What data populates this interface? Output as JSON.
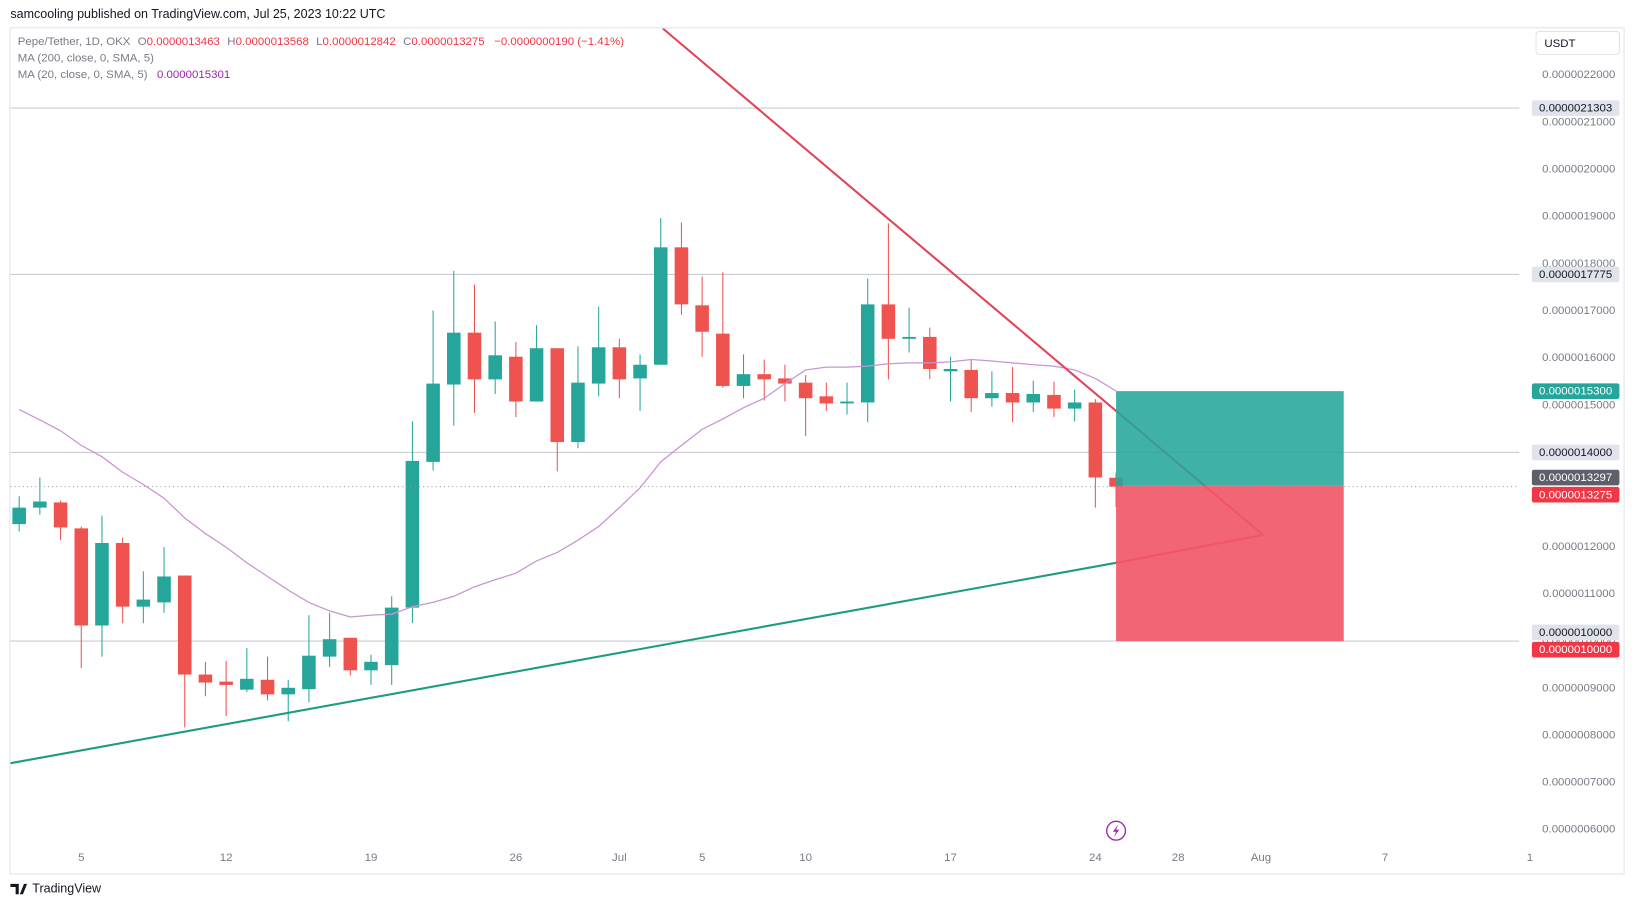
{
  "header": {
    "text": "samcooling published on TradingView.com, Jul 25, 2023 10:22 UTC"
  },
  "footer": {
    "text": "TradingView"
  },
  "chart_data": {
    "type": "candlestick",
    "currency": "USDT",
    "legend": {
      "symbol": "Pepe/Tether, 1D, OKX",
      "labels": [
        "O",
        "H",
        "L",
        "C"
      ],
      "change": "−0.0000000190 (−1.41%)"
    },
    "categories": [
      null,
      null,
      null,
      "5",
      null,
      null,
      null,
      null,
      null,
      null,
      "12",
      null,
      null,
      null,
      null,
      null,
      null,
      "19",
      null,
      null,
      null,
      null,
      null,
      null,
      "26",
      null,
      null,
      null,
      null,
      "Jul",
      null,
      null,
      null,
      "5",
      null,
      null,
      null,
      null,
      "10",
      null,
      null,
      null,
      null,
      null,
      null,
      "17",
      null,
      null,
      null,
      null,
      null,
      null,
      "24",
      null,
      null,
      null,
      "28",
      null,
      null,
      null,
      "Aug",
      null,
      null,
      null,
      null,
      null,
      "7",
      null,
      null,
      null,
      null,
      null,
      null,
      "1"
    ],
    "series": [
      {
        "name": "Pepe/Tether",
        "up_color": "#26a69a",
        "down_color": "#ef5350",
        "open": [
          1.248e-06,
          1.283e-06,
          1.294e-06,
          1.239e-06,
          1.033e-06,
          1.208e-06,
          1.073e-06,
          1.082e-06,
          1.139e-06,
          9.29e-07,
          9.14e-07,
          8.97e-07,
          9.18e-07,
          8.87e-07,
          8.98e-07,
          9.67e-07,
          1.007e-06,
          9.38e-07,
          9.49e-07,
          1.071e-06,
          1.38e-06,
          1.544e-06,
          1.654e-06,
          1.555e-06,
          1.603e-06,
          1.508e-06,
          1.621e-06,
          1.422e-06,
          1.546e-06,
          1.623e-06,
          1.557e-06,
          1.586e-06,
          1.835e-06,
          1.712e-06,
          1.652e-06,
          1.541e-06,
          1.566e-06,
          1.557e-06,
          1.548e-06,
          1.519e-06,
          1.504e-06,
          1.506e-06,
          1.714e-06,
          1.641e-06,
          1.645e-06,
          1.572e-06,
          1.575e-06,
          1.515e-06,
          1.526e-06,
          1.506e-06,
          1.522e-06,
          1.493e-06,
          1.506e-06,
          1.3463e-06,
          null,
          null,
          null,
          null,
          null,
          null,
          null,
          null,
          null,
          null,
          null,
          null,
          null,
          null,
          null,
          null,
          null,
          null,
          null,
          null
        ],
        "high": [
          1.307e-06,
          1.347e-06,
          1.298e-06,
          1.243e-06,
          1.266e-06,
          1.219e-06,
          1.148e-06,
          1.199e-06,
          1.139e-06,
          9.56e-07,
          9.58e-07,
          9.85e-07,
          9.67e-07,
          9.18e-07,
          1.055e-06,
          1.06e-06,
          1.007e-06,
          9.71e-07,
          1.095e-06,
          1.466e-06,
          1.701e-06,
          1.785e-06,
          1.756e-06,
          1.678e-06,
          1.634e-06,
          1.67e-06,
          1.621e-06,
          1.625e-06,
          1.709e-06,
          1.641e-06,
          1.608e-06,
          1.897e-06,
          1.888e-06,
          1.773e-06,
          1.782e-06,
          1.608e-06,
          1.597e-06,
          1.586e-06,
          1.564e-06,
          1.548e-06,
          1.548e-06,
          1.769e-06,
          1.886e-06,
          1.707e-06,
          1.665e-06,
          1.603e-06,
          1.597e-06,
          1.572e-06,
          1.581e-06,
          1.552e-06,
          1.55e-06,
          1.533e-06,
          1.513e-06,
          1.3568e-06,
          null,
          null,
          null,
          null,
          null,
          null,
          null,
          null,
          null,
          null,
          null,
          null,
          null,
          null,
          null,
          null,
          null,
          null,
          null,
          null
        ],
        "low": [
          1.232e-06,
          1.268e-06,
          1.214e-06,
          9.43e-07,
          9.67e-07,
          1.038e-06,
          1.038e-06,
          1.06e-06,
          8.17e-07,
          8.83e-07,
          8.41e-07,
          8.92e-07,
          8.74e-07,
          8.3e-07,
          8.7e-07,
          9.45e-07,
          9.27e-07,
          9.07e-07,
          9.07e-07,
          1.038e-06,
          1.362e-06,
          1.457e-06,
          1.484e-06,
          1.524e-06,
          1.475e-06,
          1.508e-06,
          1.36e-06,
          1.409e-06,
          1.519e-06,
          1.515e-06,
          1.488e-06,
          1.586e-06,
          1.692e-06,
          1.603e-06,
          1.537e-06,
          1.515e-06,
          1.51e-06,
          1.508e-06,
          1.435e-06,
          1.488e-06,
          1.48e-06,
          1.464e-06,
          1.555e-06,
          1.612e-06,
          1.555e-06,
          1.508e-06,
          1.486e-06,
          1.497e-06,
          1.464e-06,
          1.486e-06,
          1.475e-06,
          1.466e-06,
          1.283e-06,
          1.2842e-06,
          null,
          null,
          null,
          null,
          null,
          null,
          null,
          null,
          null,
          null,
          null,
          null,
          null,
          null,
          null,
          null,
          null,
          null,
          null,
          null
        ],
        "close": [
          1.283e-06,
          1.296e-06,
          1.241e-06,
          1.033e-06,
          1.208e-06,
          1.073e-06,
          1.088e-06,
          1.137e-06,
          9.29e-07,
          9.12e-07,
          9.07e-07,
          9.2e-07,
          8.87e-07,
          9.01e-07,
          9.69e-07,
          1.004e-06,
          9.38e-07,
          9.56e-07,
          1.071e-06,
          1.382e-06,
          1.546e-06,
          1.654e-06,
          1.555e-06,
          1.606e-06,
          1.508e-06,
          1.621e-06,
          1.422e-06,
          1.548e-06,
          1.623e-06,
          1.555e-06,
          1.586e-06,
          1.835e-06,
          1.714e-06,
          1.656e-06,
          1.541e-06,
          1.566e-06,
          1.555e-06,
          1.546e-06,
          1.515e-06,
          1.504e-06,
          1.508e-06,
          1.714e-06,
          1.641e-06,
          1.645e-06,
          1.577e-06,
          1.577e-06,
          1.515e-06,
          1.526e-06,
          1.506e-06,
          1.524e-06,
          1.493e-06,
          1.506e-06,
          1.347e-06,
          1.3275e-06,
          null,
          null,
          null,
          null,
          null,
          null,
          null,
          null,
          null,
          null,
          null,
          null,
          null,
          null,
          null,
          null,
          null,
          null,
          null,
          null
        ]
      }
    ],
    "indicators": [
      {
        "name": "MA (200, close, 0, SMA, 5)"
      },
      {
        "name": "MA (20, close, 0, SMA, 5)",
        "color": "#c993d4",
        "values": [
          1.491e-06,
          1.469e-06,
          1.446e-06,
          1.415e-06,
          1.391e-06,
          1.358e-06,
          1.332e-06,
          1.303e-06,
          1.261e-06,
          1.228e-06,
          1.199e-06,
          1.166e-06,
          1.137e-06,
          1.108e-06,
          1.082e-06,
          1.064e-06,
          1.051e-06,
          1.055e-06,
          1.057e-06,
          1.073e-06,
          1.082e-06,
          1.095e-06,
          1.115e-06,
          1.13e-06,
          1.144e-06,
          1.17e-06,
          1.188e-06,
          1.214e-06,
          1.243e-06,
          1.283e-06,
          1.325e-06,
          1.38e-06,
          1.415e-06,
          1.449e-06,
          1.471e-06,
          1.495e-06,
          1.515e-06,
          1.546e-06,
          1.575e-06,
          1.581e-06,
          1.581e-06,
          1.583e-06,
          1.588e-06,
          1.59e-06,
          1.59e-06,
          1.592e-06,
          1.597e-06,
          1.594e-06,
          1.59e-06,
          1.586e-06,
          1.583e-06,
          1.575e-06,
          1.557e-06,
          1.5301e-06,
          null,
          null,
          null,
          null,
          null,
          null,
          null,
          null,
          null,
          null,
          null,
          null,
          null,
          null,
          null,
          null,
          null,
          null,
          null,
          null
        ]
      }
    ],
    "ylim": [
      5.735e-07,
      2.2994e-06
    ],
    "yticks": [
      {
        "value": 6e-07,
        "label": "0.0000006000"
      },
      {
        "value": 7e-07,
        "label": "0.0000007000"
      },
      {
        "value": 8e-07,
        "label": "0.0000008000"
      },
      {
        "value": 9e-07,
        "label": "0.0000009000"
      },
      {
        "value": 1e-06,
        "label": "0.0000010000"
      },
      {
        "value": 1.1e-06,
        "label": "0.0000011000"
      },
      {
        "value": 1.2e-06,
        "label": "0.0000012000"
      },
      {
        "value": 1.3e-06,
        "label": "0.0000013000"
      },
      {
        "value": 1.4e-06,
        "label": "0.0000014000"
      },
      {
        "value": 1.5e-06,
        "label": "0.0000015000"
      },
      {
        "value": 1.6e-06,
        "label": "0.0000016000"
      },
      {
        "value": 1.7e-06,
        "label": "0.0000017000"
      },
      {
        "value": 1.8e-06,
        "label": "0.0000018000"
      },
      {
        "value": 1.9e-06,
        "label": "0.0000019000"
      },
      {
        "value": 2e-06,
        "label": "0.0000020000"
      },
      {
        "value": 2.1e-06,
        "label": "0.0000021000"
      },
      {
        "value": 2.2e-06,
        "label": "0.0000022000"
      }
    ],
    "grid": false,
    "price_lines": [
      2.1303e-06,
      1.7775e-06,
      {
        "value": 1.4e-06,
        "label": "0.0000014000"
      },
      {
        "value": 1e-06,
        "label": "0.0000010000"
      }
    ],
    "position": {
      "start": 53,
      "end": 64,
      "entry": 1.3297e-06,
      "target": {
        "value": 1.53e-06,
        "label": "0.0000015300"
      },
      "stop": {
        "value": 1e-06,
        "label": "0.0000010000"
      },
      "profit_color": "#26a69a",
      "loss_color": "#f15868"
    },
    "trend_lines": [
      {
        "color": "#e0455a",
        "x": [
          31.1,
          60.1,
          53.0
        ],
        "values": [
          2.299e-06,
          1.225e-06,
          1.166e-06
        ]
      },
      {
        "color": "#1e9c80",
        "x": [
          -0.42,
          53.0
        ],
        "values": [
          7.41e-07,
          1.166e-06
        ]
      }
    ]
  }
}
